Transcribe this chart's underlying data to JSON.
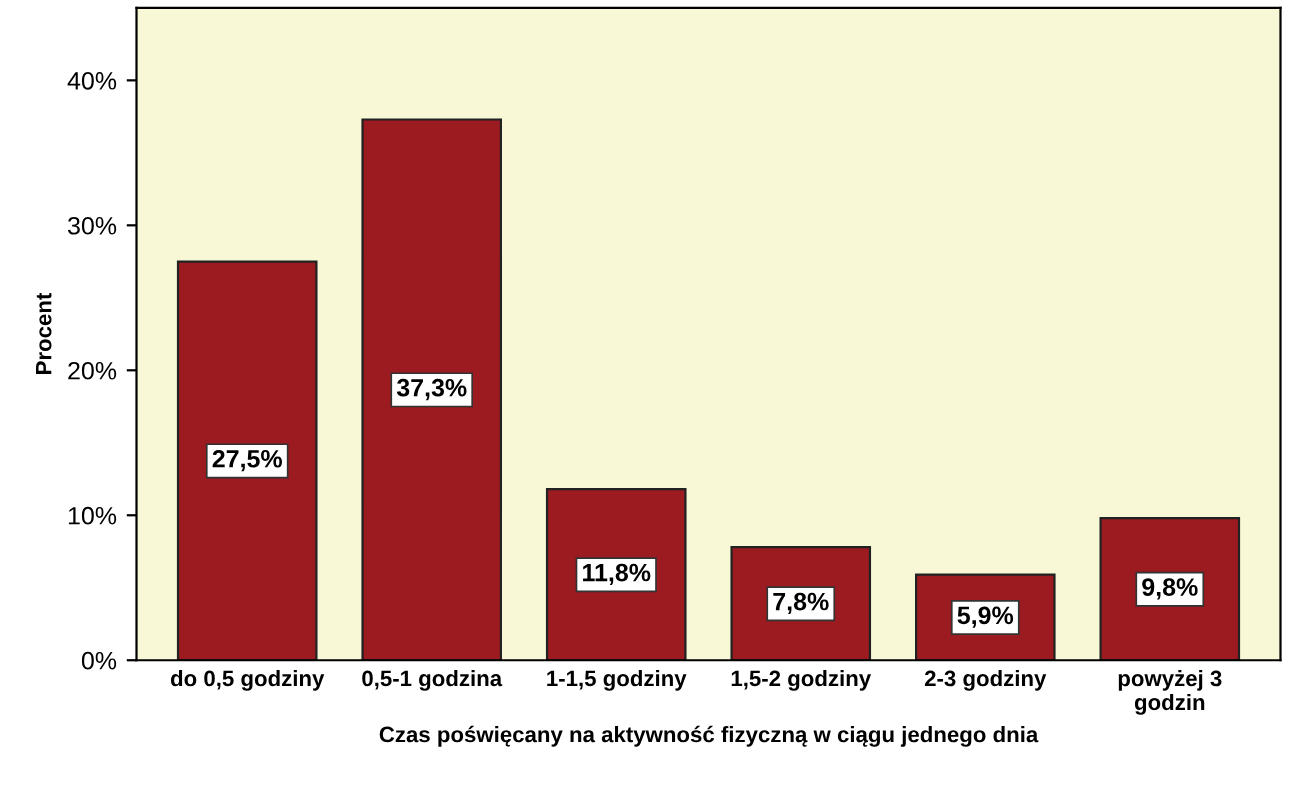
{
  "chart_data": {
    "type": "bar",
    "xlabel": "Czas poświęcany na aktywność fizyczną w ciągu jednego dnia",
    "ylabel": "Procent",
    "categories": [
      "do 0,5 godziny",
      "0,5-1 godzina",
      "1-1,5 godziny",
      "1,5-2 godziny",
      "2-3 godziny",
      "powyżej 3\ngodzin"
    ],
    "values": [
      27.5,
      37.3,
      11.8,
      7.8,
      5.9,
      9.8
    ],
    "value_labels": [
      "27,5%",
      "37,3%",
      "11,8%",
      "7,8%",
      "5,9%",
      "9,8%"
    ],
    "color": "#9b1b20",
    "ylim": [
      0,
      45
    ],
    "yticks": [
      {
        "value": 0,
        "label": "0%"
      },
      {
        "value": 10,
        "label": "10%"
      },
      {
        "value": 20,
        "label": "20%"
      },
      {
        "value": 30,
        "label": "30%"
      },
      {
        "value": 40,
        "label": "40%"
      }
    ],
    "grid": false
  }
}
